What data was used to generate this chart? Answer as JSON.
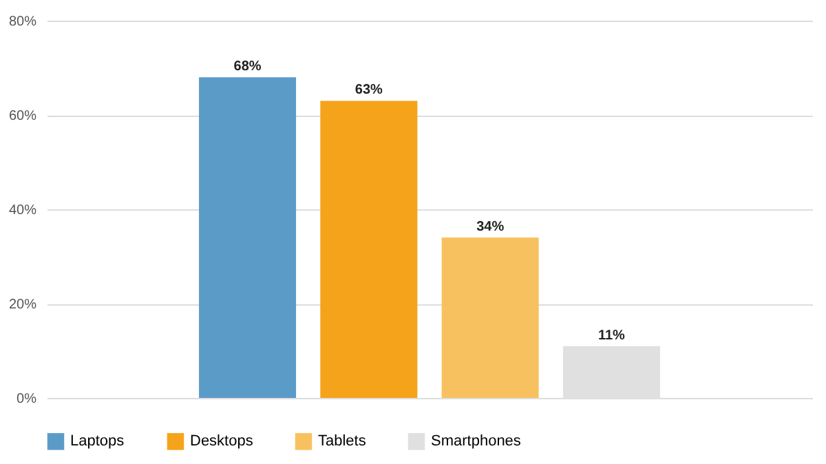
{
  "chart_data": {
    "type": "bar",
    "categories": [
      null
    ],
    "series": [
      {
        "name": "Laptops",
        "color": "#5b9bc8",
        "values": [
          68
        ],
        "value_labels": [
          "68%"
        ]
      },
      {
        "name": "Desktops",
        "color": "#f5a31a",
        "values": [
          63
        ],
        "value_labels": [
          "63%"
        ]
      },
      {
        "name": "Tablets",
        "color": "#f8c160",
        "values": [
          34
        ],
        "value_labels": [
          "34%"
        ]
      },
      {
        "name": "Smartphones",
        "color": "#e0e0e0",
        "values": [
          11
        ],
        "value_labels": [
          "11%"
        ]
      }
    ],
    "ylim": [
      0,
      80
    ],
    "yticks": [
      {
        "value": 0,
        "label": "0%"
      },
      {
        "value": 20,
        "label": "20%"
      },
      {
        "value": 40,
        "label": "40%"
      },
      {
        "value": 60,
        "label": "60%"
      },
      {
        "value": 80,
        "label": "80%"
      }
    ],
    "grid": "y",
    "legend": "bottom left"
  }
}
